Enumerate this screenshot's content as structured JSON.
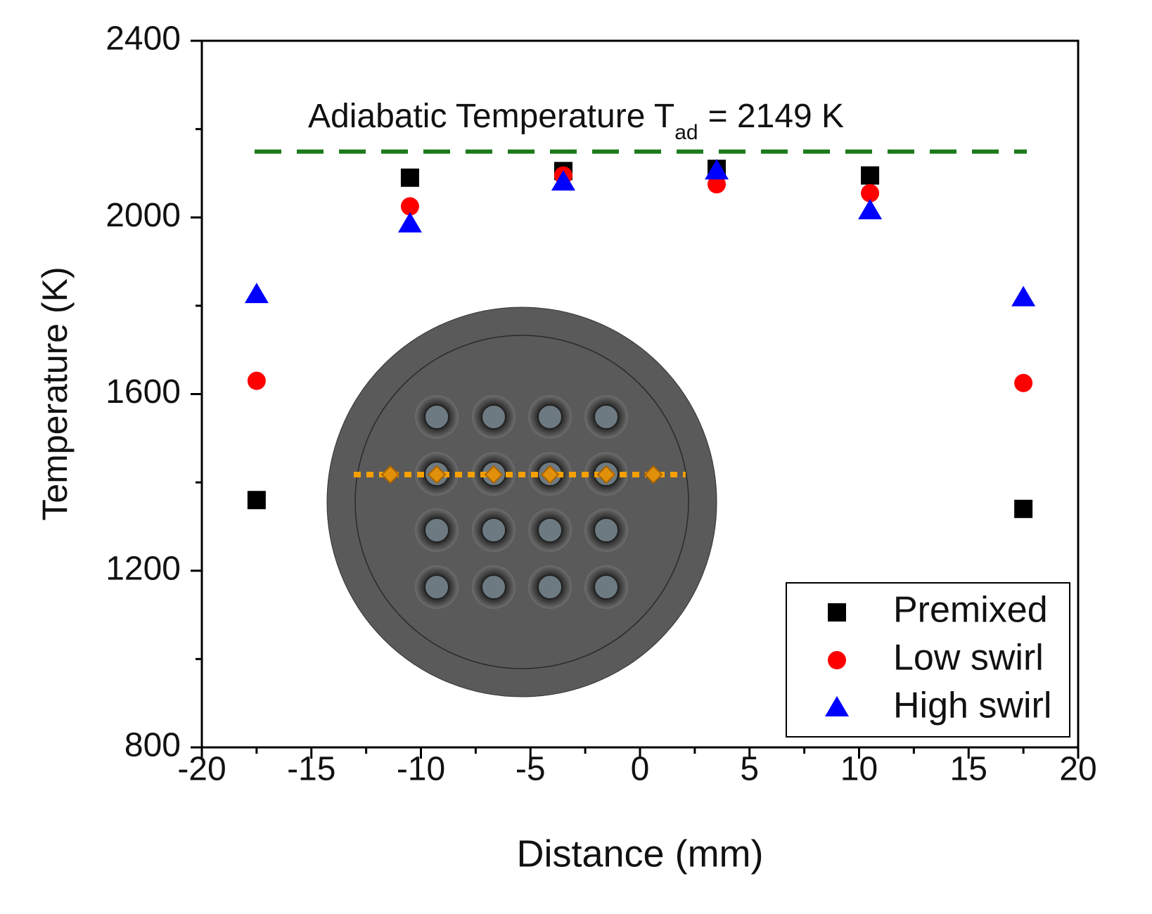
{
  "chart_data": {
    "type": "scatter",
    "xlabel": "Distance (mm)",
    "ylabel": "Temperature (K)",
    "x": [
      -17.5,
      -10.5,
      -3.5,
      3.5,
      10.5,
      17.5
    ],
    "series": [
      {
        "name": "Premixed",
        "color": "#000000",
        "marker": "square",
        "values": [
          1360,
          2090,
          2105,
          2110,
          2095,
          1340
        ]
      },
      {
        "name": "Low swirl",
        "color": "#ff0000",
        "marker": "circle",
        "values": [
          1630,
          2025,
          2095,
          2075,
          2055,
          1625
        ]
      },
      {
        "name": "High swirl",
        "color": "#0000ff",
        "marker": "triangle",
        "values": [
          1825,
          1985,
          2080,
          2105,
          2015,
          1818
        ]
      }
    ],
    "reference_line": {
      "value": 2149,
      "color": "#1a7a1a",
      "text": "Adiabatic Temperature T",
      "subscript": "ad",
      "suffix": "= 2149 K"
    },
    "xlim": [
      -20,
      20
    ],
    "xticks": [
      -20,
      -15,
      -10,
      -5,
      0,
      5,
      10,
      15,
      20
    ],
    "xminorticks": [
      -17.5,
      -12.5,
      -7.5,
      -2.5,
      2.5,
      7.5,
      12.5,
      17.5
    ],
    "ylim": [
      800,
      2400
    ],
    "yticks": [
      800,
      1200,
      1600,
      2000,
      2400
    ],
    "yminorticks": [
      1000,
      1400,
      1800,
      2200
    ],
    "legend": "lower right"
  }
}
